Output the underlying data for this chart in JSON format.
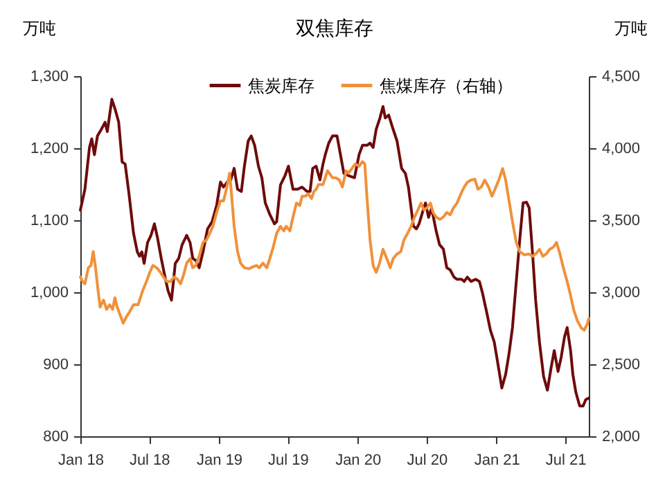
{
  "chart_data": {
    "type": "line",
    "title": "双焦库存",
    "ylabel": "万吨",
    "y2label": "万吨",
    "legend": "top",
    "xlim": [
      "2018-01-01",
      "2021-09-01"
    ],
    "xticks": [
      {
        "value": "2018-01-01",
        "label": "Jan 18"
      },
      {
        "value": "2018-07-01",
        "label": "Jul 18"
      },
      {
        "value": "2019-01-01",
        "label": "Jan 19"
      },
      {
        "value": "2019-07-01",
        "label": "Jul 19"
      },
      {
        "value": "2020-01-01",
        "label": "Jan 20"
      },
      {
        "value": "2020-07-01",
        "label": "Jul 20"
      },
      {
        "value": "2021-01-01",
        "label": "Jan 21"
      },
      {
        "value": "2021-07-01",
        "label": "Jul 21"
      }
    ],
    "ylim": [
      800,
      1300
    ],
    "yticks": [
      800,
      900,
      {
        "value": 1000,
        "label": "1,000"
      },
      {
        "value": 1100,
        "label": "1,100"
      },
      {
        "value": 1200,
        "label": "1,200"
      },
      {
        "value": 1300,
        "label": "1,300"
      }
    ],
    "y2lim": [
      2000,
      4500
    ],
    "y2ticks": [
      {
        "value": 2000,
        "label": "2,000"
      },
      {
        "value": 2500,
        "label": "2,500"
      },
      {
        "value": 3000,
        "label": "3,000"
      },
      {
        "value": 3500,
        "label": "3,500"
      },
      {
        "value": 4000,
        "label": "4,000"
      },
      {
        "value": 4500,
        "label": "4,500"
      }
    ],
    "series": [
      {
        "name": "焦炭库存",
        "color": "#6e0b0b",
        "x": [
          "2018-01-01",
          "2018-01-13",
          "2018-01-25",
          "2018-01-31",
          "2018-02-07",
          "2018-02-15",
          "2018-02-25",
          "2018-03-07",
          "2018-03-13",
          "2018-03-25",
          "2018-04-02",
          "2018-04-12",
          "2018-04-21",
          "2018-04-29",
          "2018-05-09",
          "2018-05-21",
          "2018-05-31",
          "2018-06-06",
          "2018-06-12",
          "2018-06-18",
          "2018-06-27",
          "2018-07-06",
          "2018-07-15",
          "2018-07-23",
          "2018-08-02",
          "2018-08-12",
          "2018-08-20",
          "2018-08-29",
          "2018-09-08",
          "2018-09-17",
          "2018-09-26",
          "2018-10-08",
          "2018-10-17",
          "2018-10-24",
          "2018-11-01",
          "2018-11-10",
          "2018-11-20",
          "2018-12-02",
          "2018-12-14",
          "2018-12-26",
          "2019-01-05",
          "2019-01-13",
          "2019-01-23",
          "2019-02-01",
          "2019-02-10",
          "2019-02-19",
          "2019-03-01",
          "2019-03-09",
          "2019-03-19",
          "2019-03-27",
          "2019-04-05",
          "2019-04-15",
          "2019-04-24",
          "2019-05-03",
          "2019-05-15",
          "2019-05-27",
          "2019-06-02",
          "2019-06-12",
          "2019-06-24",
          "2019-07-03",
          "2019-07-15",
          "2019-07-27",
          "2019-08-08",
          "2019-08-21",
          "2019-08-29",
          "2019-09-05",
          "2019-09-14",
          "2019-09-24",
          "2019-10-02",
          "2019-10-08",
          "2019-10-17",
          "2019-10-27",
          "2019-11-08",
          "2019-11-26",
          "2019-12-08",
          "2019-12-24",
          "2020-01-05",
          "2020-01-14",
          "2020-01-26",
          "2020-02-03",
          "2020-02-11",
          "2020-02-19",
          "2020-02-29",
          "2020-03-08",
          "2020-03-14",
          "2020-03-23",
          "2020-04-02",
          "2020-04-14",
          "2020-04-26",
          "2020-05-06",
          "2020-05-14",
          "2020-05-21",
          "2020-05-27",
          "2020-06-04",
          "2020-06-11",
          "2020-06-20",
          "2020-06-28",
          "2020-07-06",
          "2020-07-14",
          "2020-07-26",
          "2020-08-04",
          "2020-08-14",
          "2020-08-23",
          "2020-09-01",
          "2020-09-11",
          "2020-09-19",
          "2020-10-01",
          "2020-10-08",
          "2020-10-16",
          "2020-10-26",
          "2020-11-07",
          "2020-11-17",
          "2020-11-25",
          "2020-12-07",
          "2020-12-16",
          "2020-12-26",
          "2021-01-07",
          "2021-01-15",
          "2021-01-25",
          "2021-02-03",
          "2021-02-12",
          "2021-02-22",
          "2021-03-03",
          "2021-03-12",
          "2021-03-21",
          "2021-03-28",
          "2021-04-06",
          "2021-04-14",
          "2021-04-24",
          "2021-05-05",
          "2021-05-15",
          "2021-05-25",
          "2021-06-02",
          "2021-06-12",
          "2021-06-20",
          "2021-06-29",
          "2021-07-06",
          "2021-07-15",
          "2021-07-21",
          "2021-07-29",
          "2021-08-08",
          "2021-08-17",
          "2021-08-24",
          "2021-09-01"
        ],
        "values": [
          1114,
          1143,
          1201,
          1213,
          1191,
          1217,
          1226,
          1236,
          1223,
          1268,
          1255,
          1236,
          1181,
          1178,
          1137,
          1082,
          1056,
          1050,
          1056,
          1040,
          1069,
          1079,
          1095,
          1076,
          1047,
          1021,
          1002,
          989,
          1040,
          1047,
          1066,
          1079,
          1069,
          1047,
          1044,
          1034,
          1056,
          1088,
          1098,
          1121,
          1153,
          1146,
          1153,
          1156,
          1172,
          1143,
          1140,
          1175,
          1210,
          1217,
          1204,
          1175,
          1159,
          1124,
          1108,
          1095,
          1098,
          1149,
          1162,
          1175,
          1143,
          1143,
          1146,
          1140,
          1140,
          1172,
          1175,
          1156,
          1178,
          1191,
          1207,
          1217,
          1217,
          1165,
          1162,
          1159,
          1191,
          1204,
          1204,
          1207,
          1201,
          1226,
          1242,
          1258,
          1242,
          1246,
          1229,
          1210,
          1172,
          1165,
          1146,
          1117,
          1092,
          1088,
          1095,
          1111,
          1124,
          1104,
          1117,
          1085,
          1066,
          1060,
          1034,
          1031,
          1021,
          1018,
          1018,
          1015,
          1021,
          1015,
          1018,
          1015,
          999,
          970,
          947,
          931,
          893,
          867,
          886,
          915,
          951,
          1015,
          1072,
          1124,
          1125,
          1117,
          1053,
          989,
          931,
          883,
          864,
          896,
          919,
          890,
          909,
          938,
          951,
          919,
          886,
          861,
          842,
          842,
          851,
          853
        ]
      },
      {
        "name": "焦煤库存（右轴）",
        "color": "#f0913a",
        "axis": "y2",
        "x": [
          "2018-01-01",
          "2018-01-07",
          "2018-01-13",
          "2018-01-22",
          "2018-01-29",
          "2018-02-04",
          "2018-02-10",
          "2018-02-16",
          "2018-02-22",
          "2018-03-03",
          "2018-03-11",
          "2018-03-19",
          "2018-03-27",
          "2018-04-02",
          "2018-04-08",
          "2018-04-17",
          "2018-04-24",
          "2018-05-03",
          "2018-05-11",
          "2018-05-21",
          "2018-06-02",
          "2018-06-14",
          "2018-06-24",
          "2018-07-03",
          "2018-07-11",
          "2018-07-21",
          "2018-07-31",
          "2018-08-08",
          "2018-08-17",
          "2018-08-26",
          "2018-09-05",
          "2018-09-14",
          "2018-09-22",
          "2018-09-30",
          "2018-10-08",
          "2018-10-17",
          "2018-10-24",
          "2018-11-01",
          "2018-11-10",
          "2018-11-20",
          "2018-11-29",
          "2018-12-08",
          "2018-12-16",
          "2018-12-26",
          "2019-01-05",
          "2019-01-13",
          "2019-01-22",
          "2019-01-29",
          "2019-02-03",
          "2019-02-10",
          "2019-02-19",
          "2019-02-27",
          "2019-03-09",
          "2019-03-21",
          "2019-03-31",
          "2019-04-10",
          "2019-04-17",
          "2019-04-27",
          "2019-05-07",
          "2019-05-15",
          "2019-05-24",
          "2019-06-02",
          "2019-06-12",
          "2019-06-21",
          "2019-06-27",
          "2019-07-07",
          "2019-07-15",
          "2019-07-24",
          "2019-08-02",
          "2019-08-08",
          "2019-08-17",
          "2019-08-24",
          "2019-09-02",
          "2019-09-08",
          "2019-09-14",
          "2019-09-20",
          "2019-10-02",
          "2019-10-14",
          "2019-10-27",
          "2019-11-05",
          "2019-11-14",
          "2019-11-22",
          "2019-12-02",
          "2019-12-08",
          "2019-12-17",
          "2019-12-26",
          "2020-01-05",
          "2020-01-14",
          "2020-01-20",
          "2020-01-26",
          "2020-02-03",
          "2020-02-11",
          "2020-02-19",
          "2020-02-28",
          "2020-03-08",
          "2020-03-18",
          "2020-03-27",
          "2020-04-04",
          "2020-04-14",
          "2020-04-24",
          "2020-05-02",
          "2020-05-12",
          "2020-05-21",
          "2020-05-30",
          "2020-06-08",
          "2020-06-16",
          "2020-06-24",
          "2020-07-02",
          "2020-07-11",
          "2020-07-18",
          "2020-07-26",
          "2020-08-05",
          "2020-08-14",
          "2020-08-23",
          "2020-09-01",
          "2020-09-10",
          "2020-09-19",
          "2020-09-29",
          "2020-10-08",
          "2020-10-16",
          "2020-10-26",
          "2020-11-05",
          "2020-11-13",
          "2020-11-22",
          "2020-12-01",
          "2020-12-11",
          "2020-12-20",
          "2020-12-28",
          "2021-01-07",
          "2021-01-17",
          "2021-01-25",
          "2021-02-03",
          "2021-02-12",
          "2021-02-22",
          "2021-03-03",
          "2021-03-15",
          "2021-03-27",
          "2021-04-06",
          "2021-04-14",
          "2021-04-24",
          "2021-05-03",
          "2021-05-12",
          "2021-05-21",
          "2021-05-31",
          "2021-06-08",
          "2021-06-17",
          "2021-06-26",
          "2021-07-06",
          "2021-07-15",
          "2021-07-23",
          "2021-08-02",
          "2021-08-12",
          "2021-08-20",
          "2021-08-29",
          "2021-09-01"
        ],
        "values": [
          3106,
          3074,
          3058,
          3170,
          3186,
          3282,
          3170,
          3026,
          2897,
          2946,
          2881,
          2913,
          2881,
          2962,
          2897,
          2833,
          2785,
          2833,
          2865,
          2913,
          2913,
          3010,
          3074,
          3138,
          3186,
          3170,
          3138,
          3106,
          3074,
          3074,
          3106,
          3090,
          3058,
          3122,
          3202,
          3234,
          3170,
          3186,
          3250,
          3346,
          3362,
          3410,
          3458,
          3554,
          3635,
          3635,
          3731,
          3827,
          3683,
          3458,
          3282,
          3202,
          3170,
          3163,
          3176,
          3186,
          3170,
          3202,
          3170,
          3234,
          3314,
          3410,
          3458,
          3426,
          3458,
          3426,
          3522,
          3619,
          3603,
          3667,
          3667,
          3683,
          3651,
          3699,
          3715,
          3747,
          3747,
          3843,
          3795,
          3795,
          3779,
          3731,
          3843,
          3827,
          3859,
          3891,
          3875,
          3907,
          3891,
          3651,
          3362,
          3186,
          3138,
          3202,
          3298,
          3234,
          3170,
          3234,
          3266,
          3282,
          3362,
          3410,
          3458,
          3522,
          3571,
          3619,
          3571,
          3587,
          3619,
          3554,
          3522,
          3506,
          3522,
          3554,
          3538,
          3587,
          3619,
          3683,
          3731,
          3763,
          3779,
          3785,
          3715,
          3731,
          3779,
          3731,
          3667,
          3715,
          3779,
          3859,
          3779,
          3635,
          3490,
          3346,
          3282,
          3260,
          3266,
          3250,
          3266,
          3298,
          3250,
          3266,
          3298,
          3314,
          3346,
          3266,
          3170,
          3074,
          2978,
          2881,
          2801,
          2753,
          2737,
          2785,
          2817
        ]
      }
    ]
  }
}
